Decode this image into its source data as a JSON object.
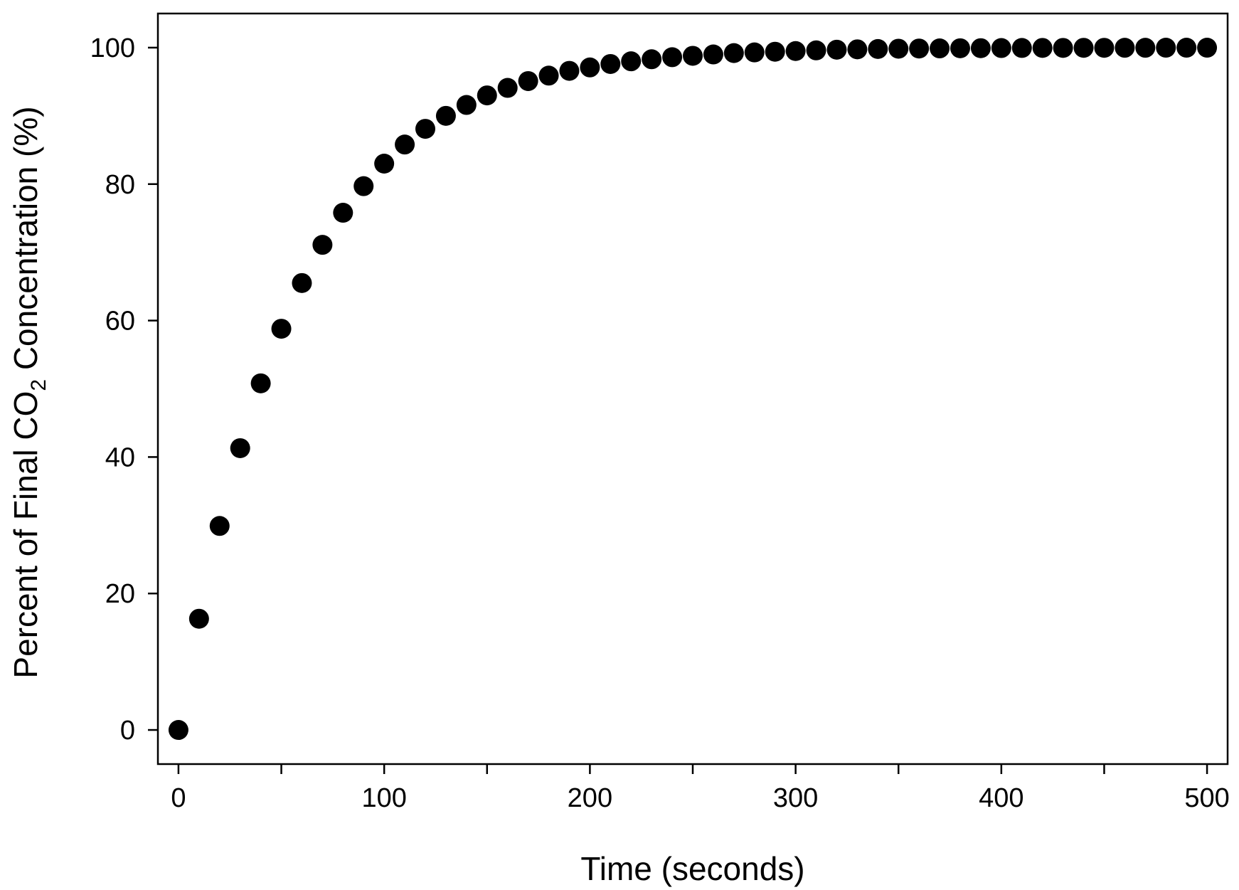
{
  "chart_data": {
    "type": "scatter",
    "title": "",
    "xlabel": "Time (seconds)",
    "ylabel": {
      "prefix": "Percent of Final CO",
      "subscript": "2",
      "suffix": " Concentration (%)"
    },
    "xlim": [
      -10,
      510
    ],
    "ylim": [
      -5,
      105
    ],
    "xticks": [
      0,
      50,
      100,
      150,
      200,
      250,
      300,
      350,
      400,
      450,
      500
    ],
    "xtick_labels": [
      "0",
      "",
      "100",
      "",
      "200",
      "",
      "300",
      "",
      "400",
      "",
      "500"
    ],
    "yticks": [
      0,
      20,
      40,
      60,
      80,
      100
    ],
    "ytick_labels": [
      "0",
      "20",
      "40",
      "60",
      "80",
      "100"
    ],
    "grid": false,
    "marker_color": "#000000",
    "series": [
      {
        "x": [
          0,
          10,
          20,
          30,
          40,
          50,
          60,
          70,
          80,
          90,
          100,
          110,
          120,
          130,
          140,
          150,
          160,
          170,
          180,
          190,
          200,
          210,
          220,
          230,
          240,
          250,
          260,
          270,
          280,
          290,
          300,
          310,
          320,
          330,
          340,
          350,
          360,
          370,
          380,
          390,
          400,
          410,
          420,
          430,
          440,
          450,
          460,
          470,
          480,
          490,
          500
        ],
        "y": [
          0,
          16.3,
          29.9,
          41.3,
          50.8,
          58.8,
          65.5,
          71.1,
          75.8,
          79.7,
          83.0,
          85.8,
          88.1,
          90.0,
          91.6,
          93.0,
          94.1,
          95.1,
          95.9,
          96.6,
          97.1,
          97.6,
          98.0,
          98.3,
          98.6,
          98.8,
          99.0,
          99.2,
          99.3,
          99.4,
          99.5,
          99.6,
          99.7,
          99.75,
          99.8,
          99.84,
          99.87,
          99.89,
          99.91,
          99.92,
          99.94,
          99.95,
          99.96,
          99.96,
          99.97,
          99.97,
          99.98,
          99.98,
          99.99,
          99.99,
          99.99
        ]
      }
    ]
  }
}
